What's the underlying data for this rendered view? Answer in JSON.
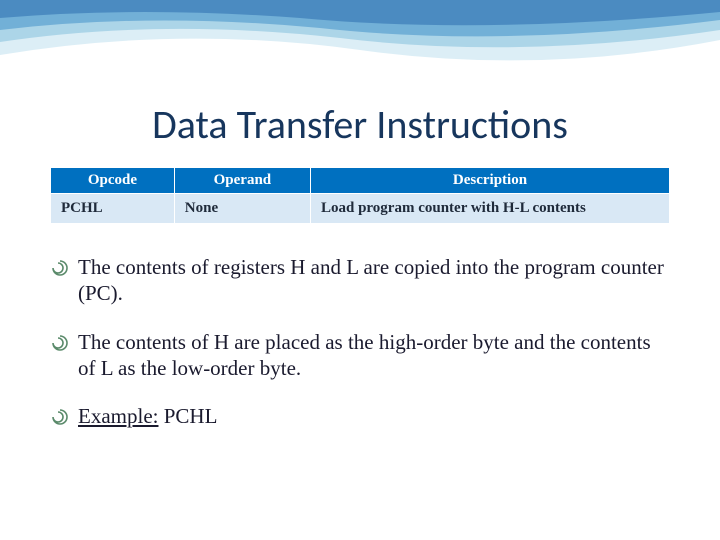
{
  "slide": {
    "title": "Data Transfer Instructions",
    "title_color": "#17365d",
    "title_fontsize": 40
  },
  "wave": {
    "colors": [
      "#3a7cb8",
      "#5aa0d0",
      "#8cc4e0",
      "#c5e2f0"
    ],
    "height": 90
  },
  "table": {
    "header_bg": "#0070c0",
    "header_color": "#ffffff",
    "row_bg": "#d9e8f5",
    "row_color": "#1f2a3a",
    "fontsize": 15,
    "columns": [
      "Opcode",
      "Operand",
      "Description"
    ],
    "col_widths": [
      "20%",
      "22%",
      "58%"
    ],
    "rows": [
      [
        "PCHL",
        "None",
        "Load program counter with H-L contents"
      ]
    ]
  },
  "bullets": {
    "color": "#1a1a2e",
    "fontsize": 21,
    "icon_color": "#5a8a6a",
    "items": [
      "The contents of registers H and L are copied into the program counter (PC).",
      "The contents of H are placed as the high-order byte and the contents of L as the low-order byte."
    ],
    "example_label": "Example:",
    "example_value": " PCHL"
  }
}
